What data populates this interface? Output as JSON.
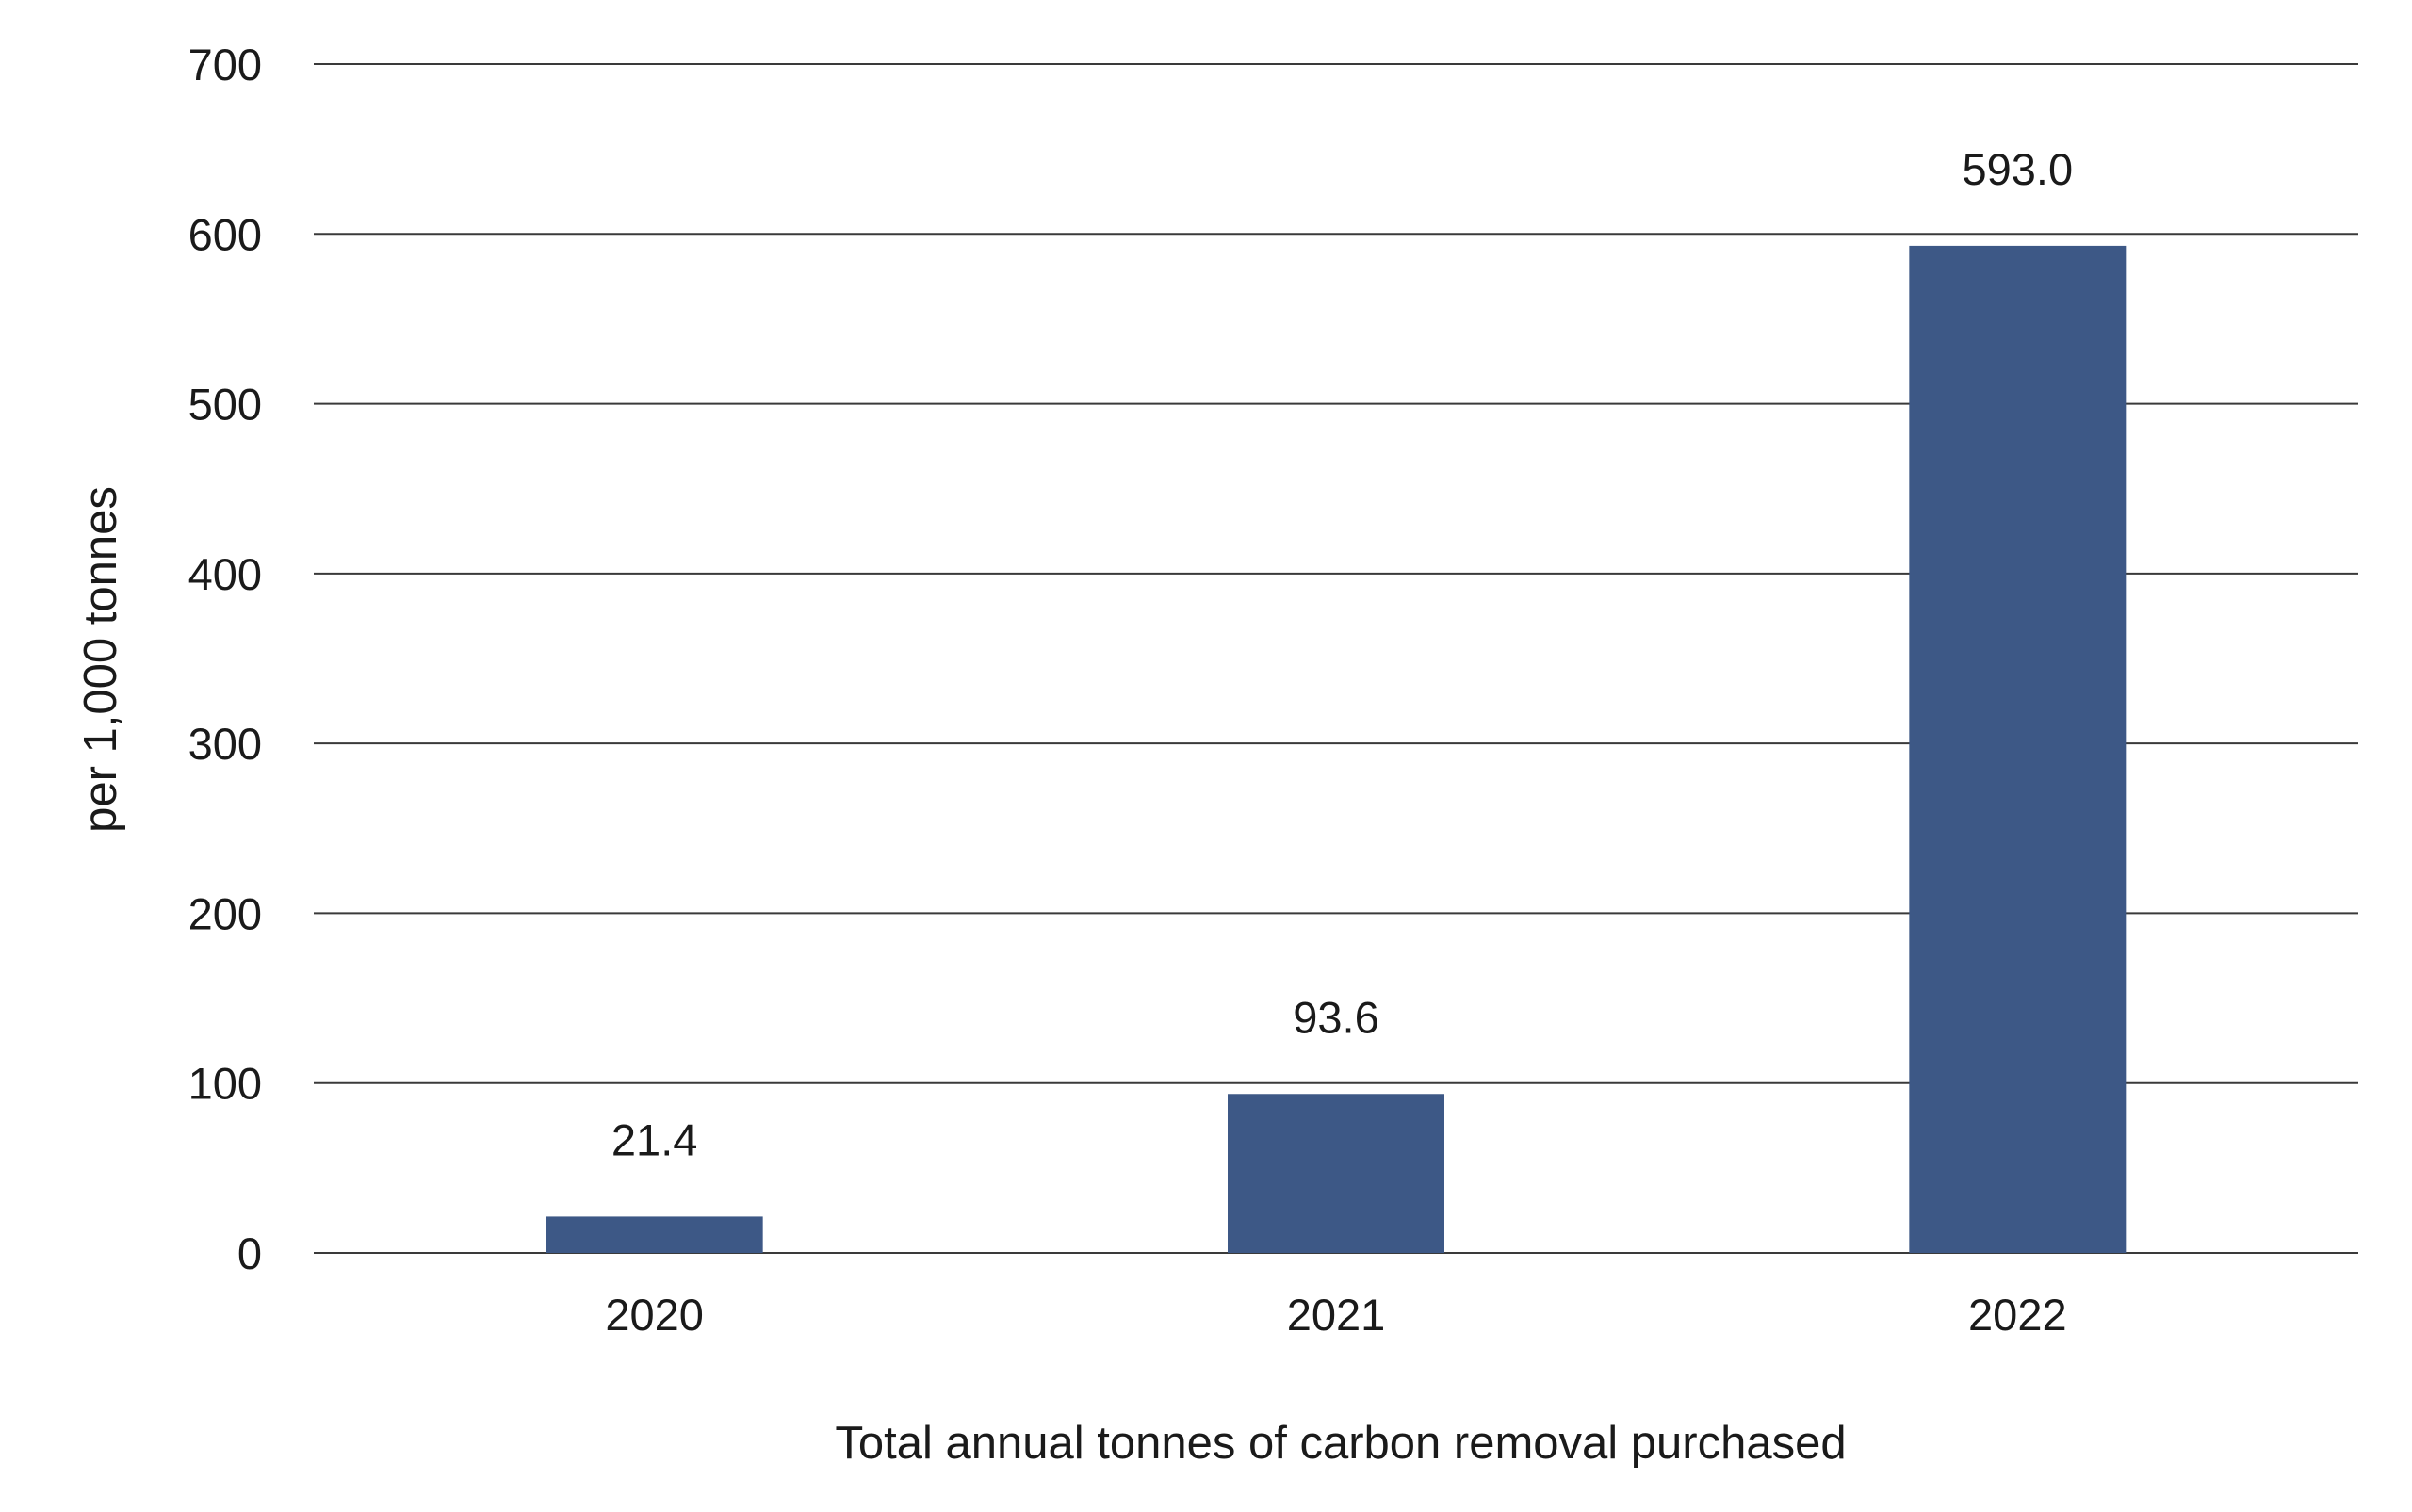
{
  "chart_data": {
    "type": "bar",
    "categories": [
      "2020",
      "2021",
      "2022"
    ],
    "values": [
      21.4,
      93.6,
      593.0
    ],
    "value_labels": [
      "21.4",
      "93.6",
      "593.0"
    ],
    "title": "",
    "xlabel": "Total annual tonnes of carbon removal purchased",
    "ylabel": "per 1,000 tonnes",
    "ylim": [
      0,
      700
    ],
    "yticks": [
      0,
      100,
      200,
      300,
      400,
      500,
      600,
      700
    ],
    "grid": true,
    "legend": "none",
    "colors": {
      "bar": "#3d5886",
      "grid": "#3a3a3a",
      "text": "#1a1a1a"
    }
  }
}
